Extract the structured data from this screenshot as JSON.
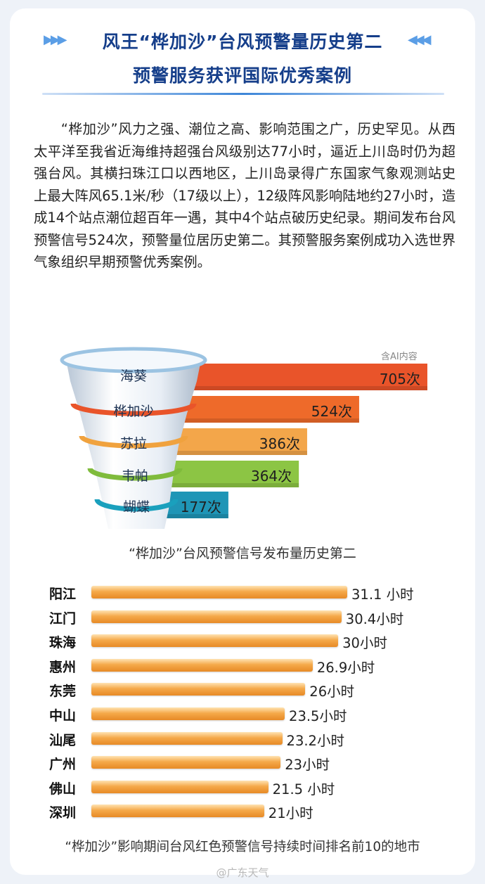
{
  "header": {
    "title_line1": "风王“桦加沙”台风预警量历史第二",
    "title_line2": "预警服务获评国际优秀案例",
    "arrow_color": "#5b9ee6"
  },
  "intro_text": "“桦加沙”风力之强、潮位之高、影响范围之广，历史罕见。从西太平洋至我省近海维持超强台风级别达77小时，逼近上川岛时仍为超强台风。其横扫珠江口以西地区，上川岛录得广东国家气象观测站史上最大阵风65.1米/秒（17级以上），12级阵风影响陆地约27小时，造成14个站点潮位超百年一遇，其中4个站点破历史纪录。期间发布台风预警信号524次，预警量位居历史第二。其预警服务案例成功入选世界气象组织早期预警优秀案例。",
  "ai_note": "含AI内容",
  "watermark": "@广东天气",
  "chart_data": [
    {
      "type": "bar",
      "orientation": "horizontal",
      "caption": "“桦加沙”台风预警信号发布量历史第二",
      "categories": [
        "海葵",
        "桦加沙",
        "苏拉",
        "韦帕",
        "蝴蝶"
      ],
      "values": [
        705,
        524,
        386,
        364,
        177
      ],
      "value_labels": [
        "705次",
        "524次",
        "386次",
        "364次",
        "177次"
      ],
      "colors": [
        "#e9542a",
        "#ee6a2a",
        "#f3a64a",
        "#8cc544",
        "#1f95b6"
      ],
      "ring_colors": [
        "#9bc3e2",
        "#e9542a",
        "#f0a23e",
        "#7fbb3c",
        "#1aa0bd"
      ],
      "xlim": [
        0,
        705
      ]
    },
    {
      "type": "bar",
      "orientation": "horizontal",
      "caption": "“桦加沙”影响期间台风红色预警信号持续时间排名前10的地市",
      "categories": [
        "阳江",
        "江门",
        "珠海",
        "惠州",
        "东莞",
        "中山",
        "汕尾",
        "广州",
        "佛山",
        "深圳"
      ],
      "values": [
        31.1,
        30.4,
        30,
        26.9,
        26,
        23.5,
        23.2,
        23,
        21.5,
        21
      ],
      "value_labels": [
        "31.1 小时",
        "30.4小时",
        "30小时",
        "26.9小时",
        "26小时",
        "23.5小时",
        "23.2小时",
        "23小时",
        "21.5 小时",
        "21小时"
      ],
      "xlim": [
        0,
        31.1
      ]
    }
  ]
}
